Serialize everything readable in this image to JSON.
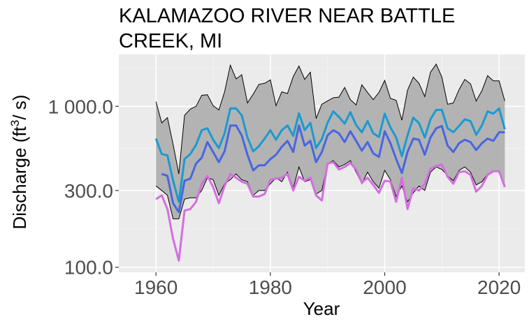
{
  "chart_data": {
    "type": "line",
    "title_lines": [
      "KALAMAZOO RIVER NEAR BATTLE",
      "CREEK, MI"
    ],
    "xlabel": "Year",
    "ylabel": "Discharge (ft",
    "ylabel_sup": "3",
    "ylabel_tail": "/ s)",
    "y_scale": "log",
    "xlim": [
      1953.5,
      2024.5
    ],
    "ylim": [
      93,
      2100
    ],
    "x_ticks": [
      1960,
      1980,
      2000,
      2020
    ],
    "y_ticks": [
      100,
      300,
      1000
    ],
    "y_tick_labels": [
      "100.0",
      "300.0",
      "1 000.0"
    ],
    "y_minor_ticks": [
      173.2,
      547.7,
      1732
    ],
    "x_minor_ticks": [
      1970,
      1990,
      2010
    ],
    "grid": true,
    "colors": {
      "panel": "#ebebeb",
      "grid_major": "#ffffff",
      "band_fill": "#b3b3b3",
      "band_stroke": "#000000",
      "series_high": "#1a9ad1",
      "series_mid": "#4766e0",
      "series_low": "#d46ee0"
    },
    "band": {
      "x": [
        1960,
        1961,
        1962,
        1963,
        1964,
        1965,
        1966,
        1967,
        1968,
        1969,
        1970,
        1971,
        1972,
        1973,
        1974,
        1975,
        1976,
        1977,
        1978,
        1979,
        1980,
        1981,
        1982,
        1983,
        1984,
        1985,
        1986,
        1987,
        1988,
        1989,
        1990,
        1991,
        1992,
        1993,
        1994,
        1995,
        1996,
        1997,
        1998,
        1999,
        2000,
        2001,
        2002,
        2003,
        2004,
        2005,
        2006,
        2007,
        2008,
        2009,
        2010,
        2011,
        2012,
        2013,
        2014,
        2015,
        2016,
        2017,
        2018,
        2019,
        2020,
        2021
      ],
      "upper": [
        1070,
        790,
        850,
        580,
        380,
        880,
        960,
        1000,
        1170,
        1180,
        1010,
        950,
        1230,
        1800,
        1480,
        1570,
        1050,
        1190,
        1370,
        1390,
        1460,
        1010,
        1230,
        1200,
        1530,
        1780,
        1470,
        1630,
        840,
        1030,
        1080,
        1130,
        1140,
        1310,
        1100,
        1020,
        1360,
        1220,
        1100,
        1220,
        1450,
        1120,
        1090,
        820,
        1260,
        1520,
        1390,
        1150,
        1630,
        1830,
        1520,
        1030,
        1050,
        1270,
        1470,
        1380,
        1080,
        1250,
        1550,
        1440,
        1440,
        1080
      ],
      "lower": [
        320,
        300,
        280,
        200,
        200,
        265,
        270,
        270,
        300,
        360,
        350,
        280,
        330,
        350,
        380,
        350,
        340,
        280,
        300,
        300,
        330,
        360,
        340,
        390,
        310,
        420,
        340,
        350,
        285,
        300,
        440,
        460,
        420,
        435,
        460,
        390,
        330,
        390,
        340,
        310,
        400,
        350,
        275,
        320,
        255,
        290,
        320,
        300,
        390,
        420,
        405,
        370,
        345,
        400,
        420,
        390,
        325,
        340,
        380,
        395,
        395,
        325
      ]
    },
    "series": [
      {
        "x": [
          1960,
          1961,
          1962,
          1963,
          1964,
          1965,
          1966,
          1967,
          1968,
          1969,
          1970,
          1971,
          1972,
          1973,
          1974,
          1975,
          1976,
          1977,
          1978,
          1979,
          1980,
          1981,
          1982,
          1983,
          1984,
          1985,
          1986,
          1987,
          1988,
          1989,
          1990,
          1991,
          1992,
          1993,
          1994,
          1995,
          1996,
          1997,
          1998,
          1999,
          2000,
          2001,
          2002,
          2003,
          2004,
          2005,
          2006,
          2007,
          2008,
          2009,
          2010,
          2011,
          2012,
          2013,
          2014,
          2015,
          2016,
          2017,
          2018,
          2019,
          2020,
          2021
        ],
        "values": [
          630,
          505,
          495,
          345,
          255,
          470,
          505,
          575,
          710,
          730,
          620,
          550,
          680,
          970,
          970,
          880,
          640,
          525,
          565,
          630,
          710,
          620,
          710,
          760,
          655,
          905,
          710,
          790,
          550,
          625,
          790,
          930,
          860,
          780,
          920,
          765,
          690,
          810,
          680,
          645,
          900,
          740,
          640,
          490,
          660,
          850,
          785,
          640,
          830,
          950,
          950,
          730,
          690,
          755,
          830,
          810,
          665,
          760,
          930,
          900,
          970,
          720
        ]
      },
      {
        "x": [
          1961,
          1962,
          1963,
          1964,
          1965,
          1966,
          1967,
          1968,
          1969,
          1970,
          1971,
          1972,
          1973,
          1974,
          1975,
          1976,
          1977,
          1978,
          1979,
          1980,
          1981,
          1982,
          1983,
          1984,
          1985,
          1986,
          1987,
          1988,
          1989,
          1990,
          1991,
          1992,
          1993,
          1994,
          1995,
          1996,
          1997,
          1998,
          1999,
          2000,
          2001,
          2002,
          2003,
          2004,
          2005,
          2006,
          2007,
          2008,
          2009,
          2010,
          2011,
          2012,
          2013,
          2014,
          2015,
          2016,
          2017,
          2018,
          2019,
          2020,
          2021
        ],
        "values": [
          380,
          370,
          250,
          220,
          345,
          355,
          440,
          480,
          600,
          520,
          450,
          525,
          760,
          760,
          660,
          500,
          400,
          430,
          430,
          470,
          500,
          560,
          610,
          520,
          760,
          570,
          610,
          450,
          520,
          660,
          710,
          680,
          600,
          700,
          610,
          530,
          600,
          510,
          485,
          700,
          590,
          470,
          385,
          520,
          630,
          620,
          500,
          640,
          730,
          755,
          570,
          520,
          590,
          620,
          600,
          535,
          590,
          630,
          610,
          690,
          690
        ]
      },
      {
        "x": [
          1960,
          1961,
          1962,
          1963,
          1964,
          1965,
          1966,
          1967,
          1968,
          1969,
          1970,
          1971,
          1972,
          1973,
          1974,
          1975,
          1976,
          1977,
          1978,
          1979,
          1980,
          1981,
          1982,
          1983,
          1984,
          1985,
          1986,
          1987,
          1988,
          1989,
          1990,
          1991,
          1992,
          1993,
          1994,
          1995,
          1996,
          1997,
          1998,
          1999,
          2000,
          2001,
          2002,
          2003,
          2004,
          2005,
          2006,
          2007,
          2008,
          2009,
          2010,
          2011,
          2012,
          2013,
          2014,
          2015,
          2016,
          2017,
          2018,
          2019,
          2020,
          2021
        ],
        "values": [
          265,
          280,
          230,
          150,
          110,
          225,
          230,
          255,
          330,
          370,
          315,
          250,
          320,
          380,
          360,
          340,
          330,
          275,
          275,
          285,
          350,
          355,
          360,
          380,
          300,
          365,
          345,
          360,
          280,
          260,
          440,
          450,
          405,
          420,
          445,
          405,
          335,
          360,
          325,
          290,
          345,
          340,
          255,
          360,
          230,
          310,
          300,
          330,
          410,
          425,
          435,
          365,
          330,
          390,
          395,
          375,
          295,
          320,
          375,
          395,
          395,
          315
        ]
      }
    ]
  }
}
